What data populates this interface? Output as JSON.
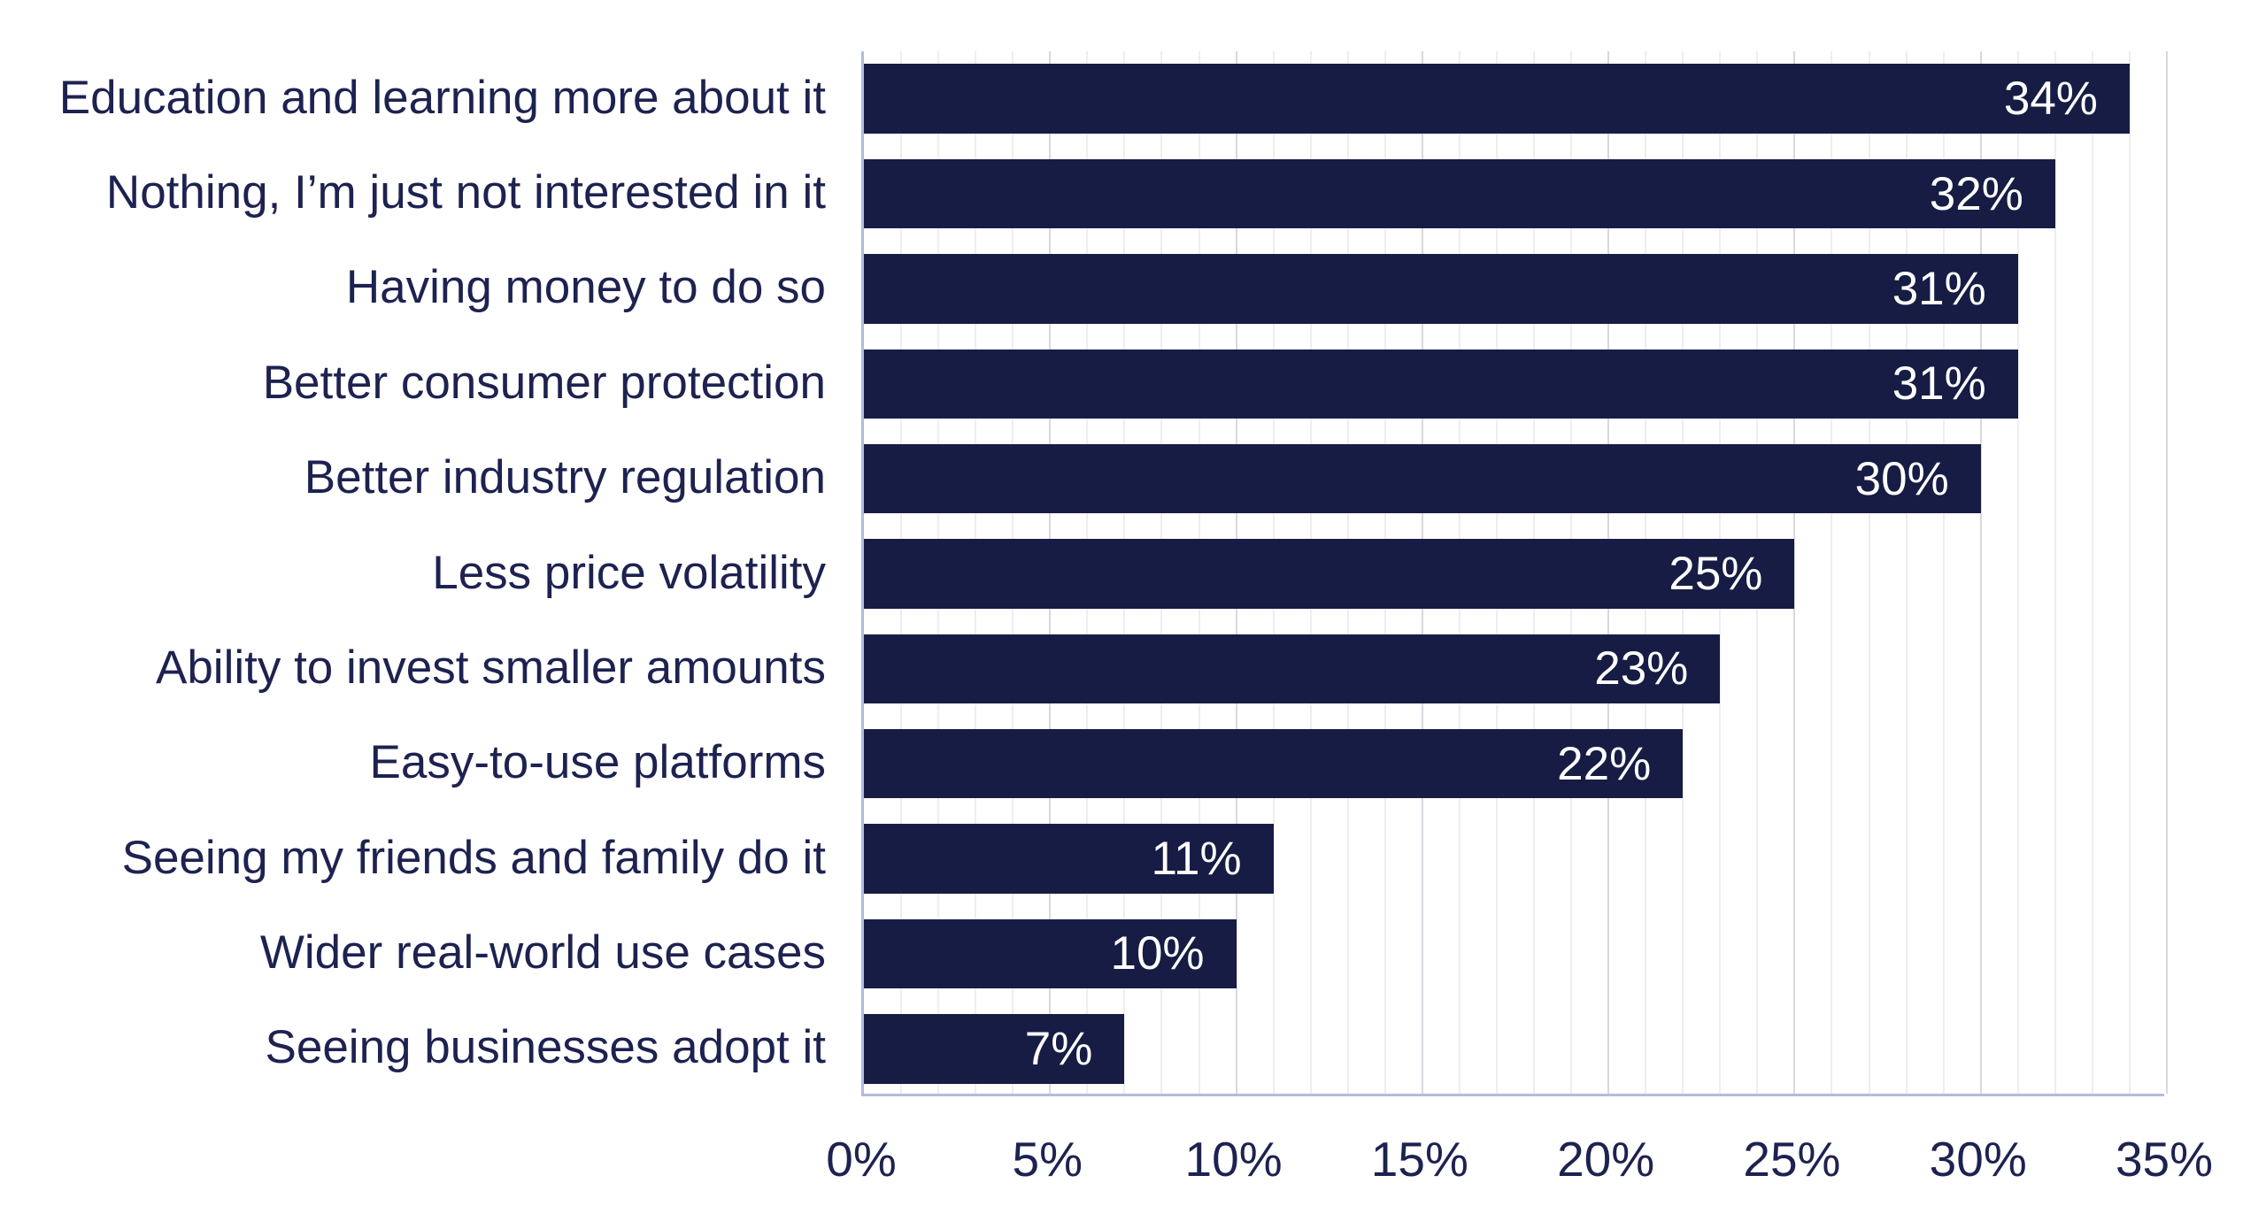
{
  "chart_data": {
    "type": "bar",
    "orientation": "horizontal",
    "title": "",
    "xlabel": "",
    "ylabel": "",
    "categories": [
      "Education and learning more about it",
      "Nothing, I’m just not interested in it",
      "Having money to do so",
      "Better consumer protection",
      "Better industry regulation",
      "Less price volatility",
      "Ability to invest smaller amounts",
      "Easy-to-use platforms",
      "Seeing my friends and family do it",
      "Wider real-world use cases",
      "Seeing businesses adopt it"
    ],
    "values": [
      34,
      32,
      31,
      31,
      30,
      25,
      23,
      22,
      11,
      10,
      7
    ],
    "value_labels": [
      "34%",
      "32%",
      "31%",
      "31%",
      "30%",
      "25%",
      "23%",
      "22%",
      "11%",
      "10%",
      "7%"
    ],
    "x_ticks": [
      {
        "value": 0,
        "label": "0%"
      },
      {
        "value": 5,
        "label": "5%"
      },
      {
        "value": 10,
        "label": "10%"
      },
      {
        "value": 15,
        "label": "15%"
      },
      {
        "value": 20,
        "label": "20%"
      },
      {
        "value": 25,
        "label": "25%"
      },
      {
        "value": 30,
        "label": "30%"
      },
      {
        "value": 35,
        "label": "35%"
      }
    ],
    "xlim": [
      0,
      35
    ],
    "minor_grid_step": 1,
    "major_grid_step": 5,
    "grid": true,
    "legend": false,
    "colors": {
      "bar": "#171c44",
      "category_text": "#1d2250",
      "tick_text": "#1d2250",
      "value_text": "#ffffff",
      "minor_gridline": "#eeeef1",
      "major_gridline": "#d8d8de",
      "axis_line": "#b3bbdc",
      "background": "#ffffff"
    }
  }
}
